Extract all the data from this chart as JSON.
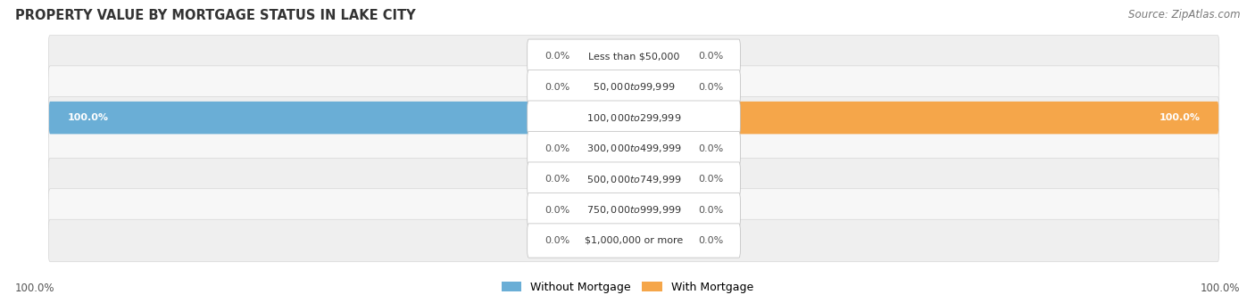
{
  "title": "PROPERTY VALUE BY MORTGAGE STATUS IN LAKE CITY",
  "source": "Source: ZipAtlas.com",
  "categories": [
    "Less than $50,000",
    "$50,000 to $99,999",
    "$100,000 to $299,999",
    "$300,000 to $499,999",
    "$500,000 to $749,999",
    "$750,000 to $999,999",
    "$1,000,000 or more"
  ],
  "without_mortgage": [
    0.0,
    0.0,
    100.0,
    0.0,
    0.0,
    0.0,
    0.0
  ],
  "with_mortgage": [
    0.0,
    0.0,
    100.0,
    0.0,
    0.0,
    0.0,
    0.0
  ],
  "blue_color": "#6aaed6",
  "orange_color": "#f5a64a",
  "blue_light": "#b8d4e8",
  "orange_light": "#f8d4a8",
  "row_bg_color": "#efefef",
  "row_bg_alt": "#f7f7f7",
  "figsize": [
    14.06,
    3.4
  ],
  "dpi": 100,
  "legend_without": "Without Mortgage",
  "legend_with": "With Mortgage",
  "axis_label_left": "100.0%",
  "axis_label_right": "100.0%"
}
